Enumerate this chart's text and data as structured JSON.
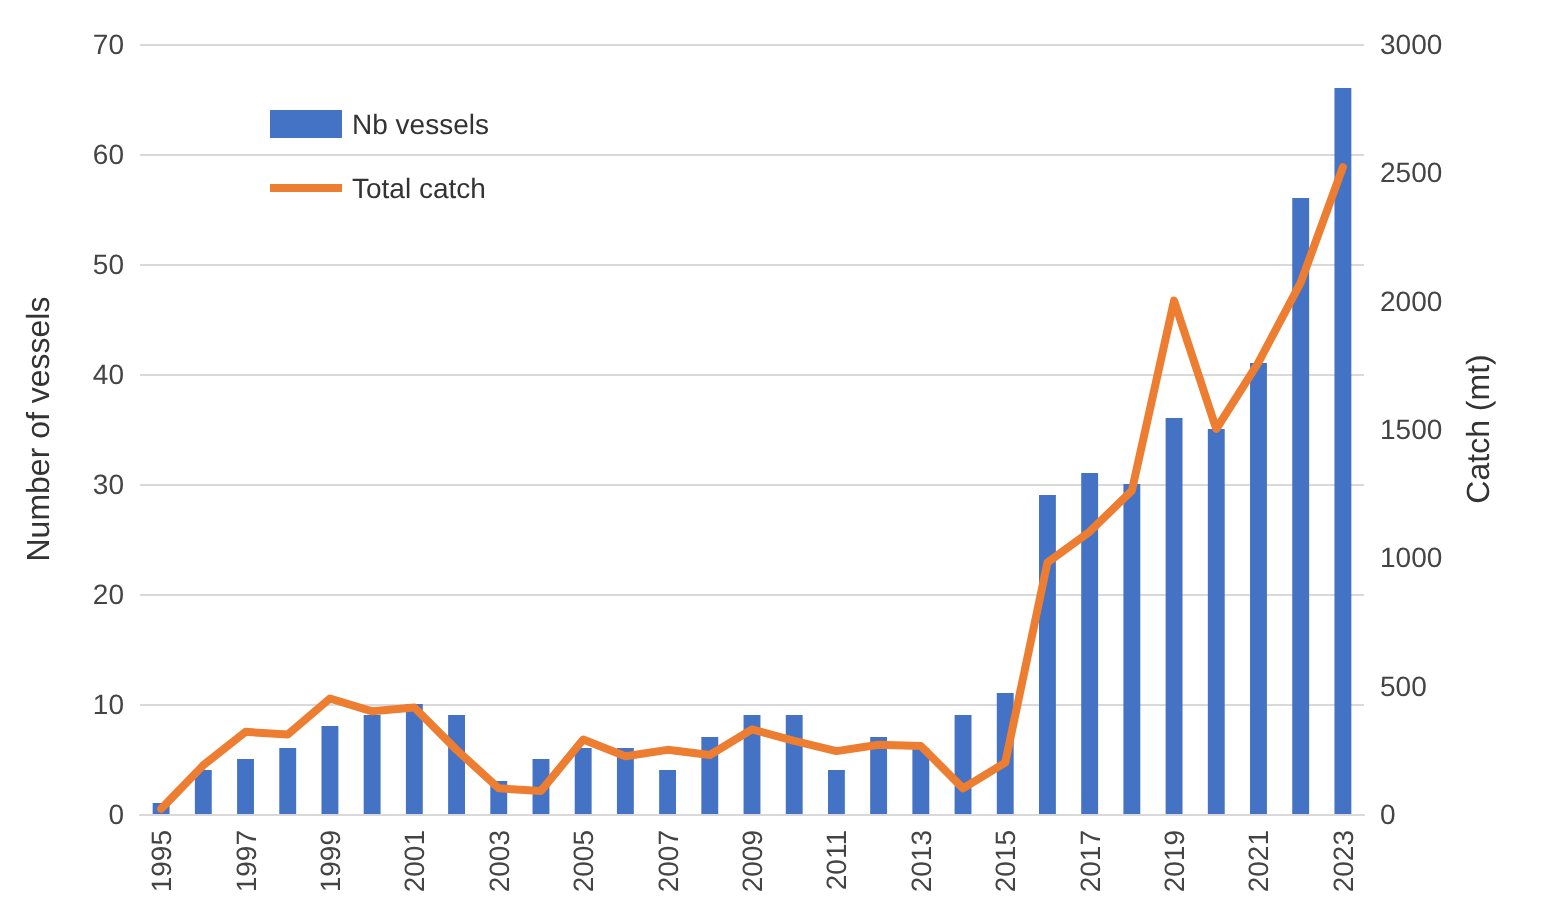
{
  "chart_data": {
    "type": "bar",
    "ylabel": "Number of vessels",
    "y2label": "Catch (mt)",
    "categories": [
      "1995",
      null,
      "1997",
      null,
      "1999",
      null,
      "2001",
      null,
      "2003",
      null,
      "2005",
      null,
      "2007",
      null,
      "2009",
      null,
      "2011",
      null,
      "2013",
      null,
      "2015",
      null,
      "2017",
      null,
      "2019",
      null,
      "2021",
      null,
      "2023"
    ],
    "series": [
      {
        "name": "Nb vessels",
        "color": "#4472c4",
        "values": [
          1,
          4,
          5,
          6,
          8,
          9,
          10,
          9,
          3,
          5,
          6,
          6,
          4,
          7,
          9,
          9,
          4,
          7,
          6,
          9,
          11,
          29,
          31,
          30,
          36,
          35,
          41,
          56,
          66
        ]
      },
      {
        "name": "Total catch",
        "type": "line",
        "axis": "y2",
        "color": "#ed7d31",
        "values": [
          20,
          190,
          320,
          310,
          450,
          400,
          415,
          250,
          100,
          90,
          290,
          225,
          250,
          230,
          330,
          285,
          245,
          270,
          265,
          100,
          200,
          980,
          1100,
          1260,
          2000,
          1500,
          1760,
          2070,
          2520
        ]
      }
    ],
    "ylim": [
      0,
      70
    ],
    "yticks": [
      0,
      10,
      20,
      30,
      40,
      50,
      60,
      70
    ],
    "y2lim": [
      0,
      3000
    ],
    "y2ticks": [
      0,
      500,
      1000,
      1500,
      2000,
      2500,
      3000
    ],
    "grid": "y",
    "legend": "top left",
    "marker": "none"
  }
}
